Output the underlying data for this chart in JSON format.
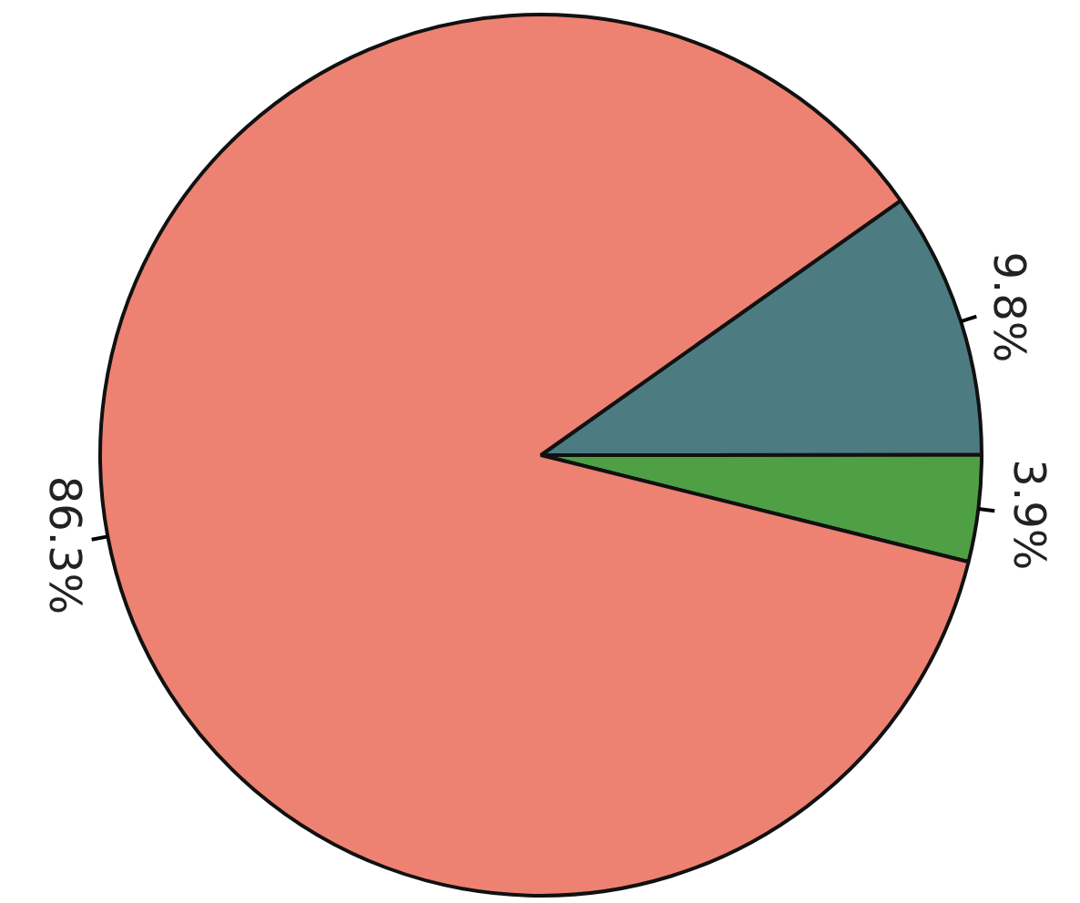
{
  "chart_data": {
    "type": "pie",
    "categories": [
      null,
      null,
      null
    ],
    "values": [
      9.8,
      3.9,
      86.3
    ],
    "colors": [
      "#4c7c82",
      "#4fa044",
      "#ee8272"
    ],
    "value_labels": [
      "9.8%",
      "3.9%",
      "86.3%"
    ],
    "legend": false
  }
}
